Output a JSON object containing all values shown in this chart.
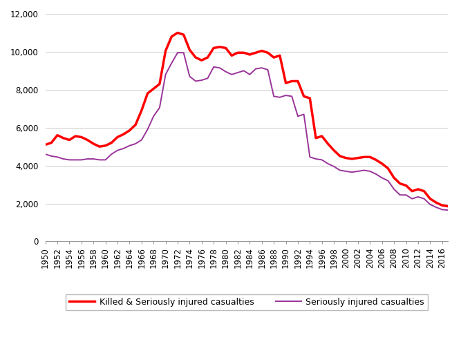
{
  "years": [
    1950,
    1951,
    1952,
    1953,
    1954,
    1955,
    1956,
    1957,
    1958,
    1959,
    1960,
    1961,
    1962,
    1963,
    1964,
    1965,
    1966,
    1967,
    1968,
    1969,
    1970,
    1971,
    1972,
    1973,
    1974,
    1975,
    1976,
    1977,
    1978,
    1979,
    1980,
    1981,
    1982,
    1983,
    1984,
    1985,
    1986,
    1987,
    1988,
    1989,
    1990,
    1991,
    1992,
    1993,
    1994,
    1995,
    1996,
    1997,
    1998,
    1999,
    2000,
    2001,
    2002,
    2003,
    2004,
    2005,
    2006,
    2007,
    2008,
    2009,
    2010,
    2011,
    2012,
    2013,
    2014,
    2015,
    2016,
    2017
  ],
  "ksi": [
    5100,
    5200,
    5600,
    5450,
    5350,
    5550,
    5500,
    5350,
    5150,
    5000,
    5050,
    5200,
    5500,
    5650,
    5850,
    6150,
    6900,
    7800,
    8050,
    8300,
    10050,
    10800,
    11000,
    10900,
    10100,
    9700,
    9550,
    9700,
    10200,
    10250,
    10200,
    9800,
    9950,
    9950,
    9850,
    9950,
    10050,
    9950,
    9700,
    9800,
    8350,
    8450,
    8450,
    7650,
    7550,
    5450,
    5550,
    5150,
    4800,
    4500,
    4400,
    4350,
    4400,
    4450,
    4450,
    4300,
    4100,
    3850,
    3350,
    3050,
    2950,
    2650,
    2750,
    2650,
    2250,
    2050,
    1900,
    1850
  ],
  "si": [
    4600,
    4500,
    4450,
    4350,
    4300,
    4300,
    4300,
    4350,
    4350,
    4300,
    4300,
    4600,
    4800,
    4900,
    5050,
    5150,
    5350,
    5900,
    6600,
    7050,
    8800,
    9400,
    9950,
    9950,
    8700,
    8450,
    8500,
    8600,
    9200,
    9150,
    8950,
    8800,
    8900,
    9000,
    8800,
    9100,
    9150,
    9050,
    7650,
    7600,
    7700,
    7650,
    6600,
    6700,
    4450,
    4350,
    4300,
    4100,
    3950,
    3750,
    3700,
    3650,
    3700,
    3750,
    3700,
    3550,
    3350,
    3200,
    2750,
    2450,
    2450,
    2250,
    2350,
    2250,
    1950,
    1800,
    1680,
    1650
  ],
  "ksi_color": "#FF0000",
  "ksi_linewidth": 2.5,
  "si_color": "#993399",
  "si_linewidth": 1.4,
  "ylim": [
    0,
    12000
  ],
  "yticks": [
    0,
    2000,
    4000,
    6000,
    8000,
    10000,
    12000
  ],
  "background_color": "#ffffff",
  "legend_ksi_label": "Killed & Seriously injured casualties",
  "legend_si_label": "Seriously injured casualties",
  "grid_color": "#c8c8c8",
  "grid_linewidth": 0.7,
  "tick_label_fontsize": 8.5
}
